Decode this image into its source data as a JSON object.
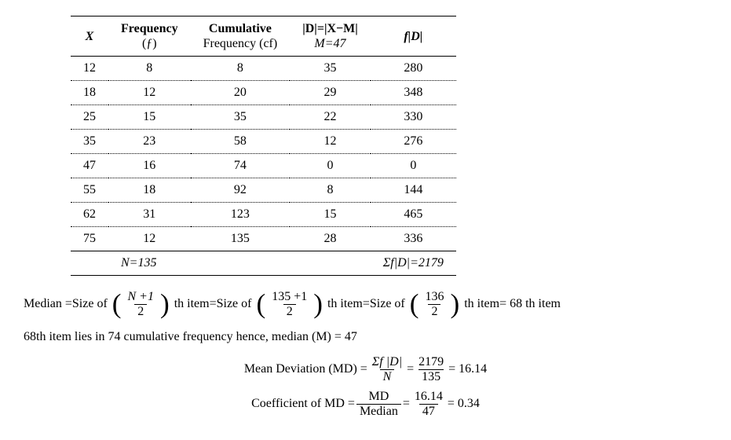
{
  "table": {
    "headers": {
      "x": "X",
      "freq_top": "Frequency",
      "freq_sub": "(ƒ)",
      "cf_top": "Cumulative",
      "cf_sub": "Frequency (cf)",
      "d_top": "|D|=|X−M|",
      "d_sub": "M=47",
      "fd": "f|D|"
    },
    "rows": [
      {
        "x": "12",
        "f": "8",
        "cf": "8",
        "d": "35",
        "fd": "280"
      },
      {
        "x": "18",
        "f": "12",
        "cf": "20",
        "d": "29",
        "fd": "348"
      },
      {
        "x": "25",
        "f": "15",
        "cf": "35",
        "d": "22",
        "fd": "330"
      },
      {
        "x": "35",
        "f": "23",
        "cf": "58",
        "d": "12",
        "fd": "276"
      },
      {
        "x": "47",
        "f": "16",
        "cf": "74",
        "d": "0",
        "fd": "0"
      },
      {
        "x": "55",
        "f": "18",
        "cf": "92",
        "d": "8",
        "fd": "144"
      },
      {
        "x": "62",
        "f": "31",
        "cf": "123",
        "d": "15",
        "fd": "465"
      },
      {
        "x": "75",
        "f": "12",
        "cf": "135",
        "d": "28",
        "fd": "336"
      }
    ],
    "footer": {
      "n": "N=135",
      "sum": "Σf|D|=2179"
    }
  },
  "calc": {
    "median_label": "Median = ",
    "sizeof": "Size of",
    "th_item": "th item",
    "frac1_num": "N +1",
    "frac1_den": "2",
    "frac2_num": "135 +1",
    "frac2_den": "2",
    "frac3_num": "136",
    "frac3_den": "2",
    "eq": " = ",
    "result68": " = 68 th item",
    "line2": "68th item lies in 74 cumulative frequency hence, median (M) = 47",
    "md_label": "Mean Deviation (MD) = ",
    "md_f1_num": "Σf |D|",
    "md_f1_den": "N",
    "md_f2_num": "2179",
    "md_f2_den": "135",
    "md_result": " = 16.14",
    "coef_label": "Coefficient of MD = ",
    "coef_f1_num": "MD",
    "coef_f1_den": "Median",
    "coef_f2_num": "16.14",
    "coef_f2_den": "47",
    "coef_result": " = 0.34"
  }
}
